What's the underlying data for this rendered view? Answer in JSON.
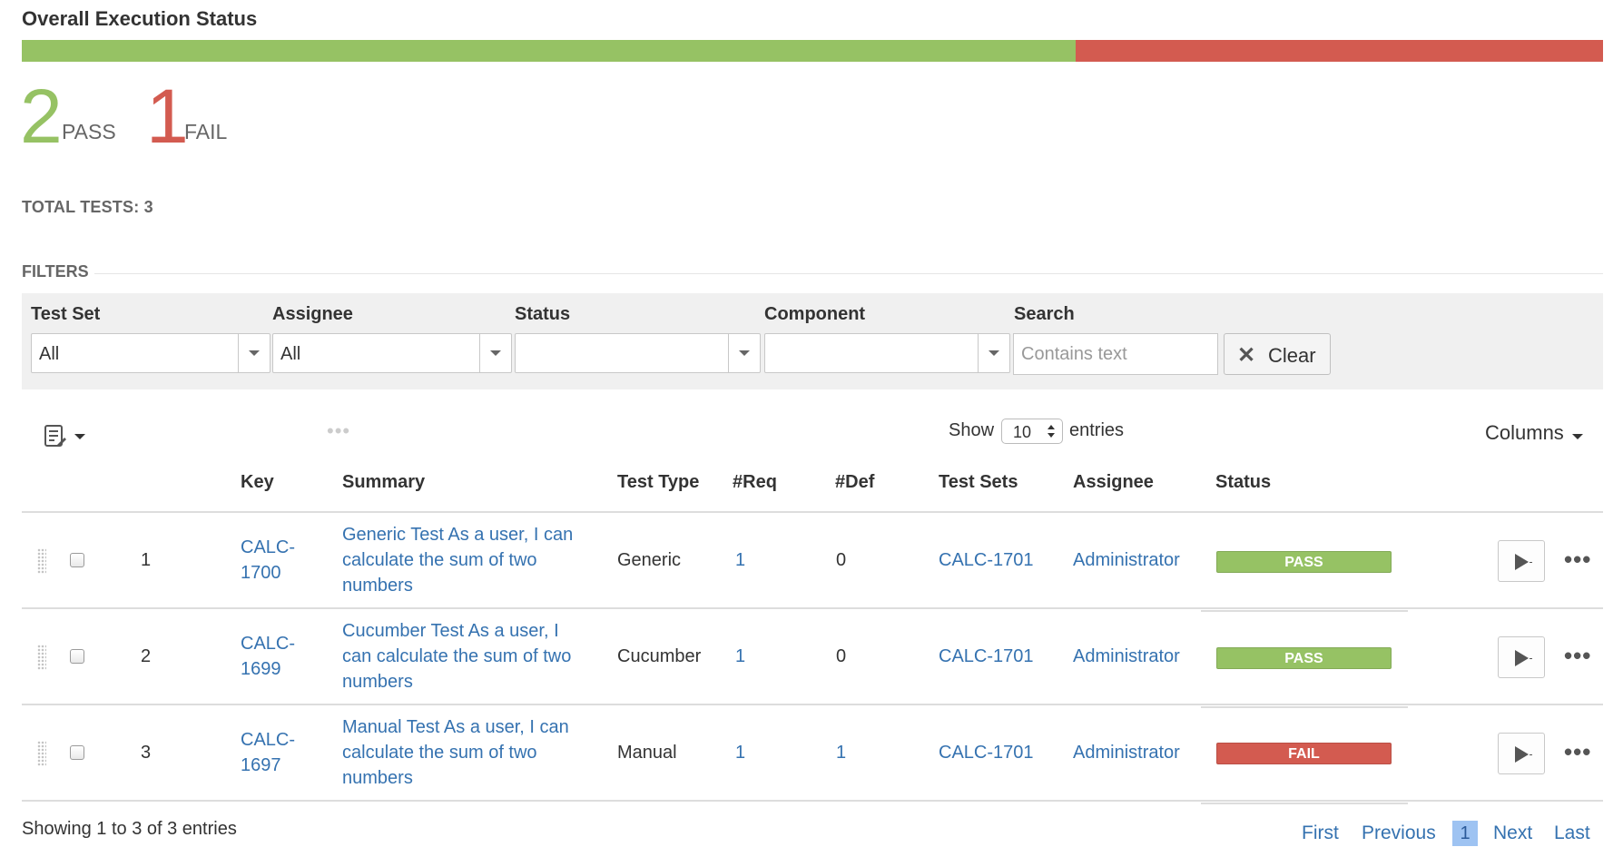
{
  "header": {
    "title": "Overall Execution Status"
  },
  "progress": {
    "pass_fraction": 0.6667,
    "fail_fraction": 0.3333,
    "pass_color": "#96c264",
    "fail_color": "#d35b50"
  },
  "counts": {
    "pass_number": "2",
    "pass_label": "PASS",
    "fail_number": "1",
    "fail_label": "FAIL"
  },
  "summary": {
    "total_tests": "TOTAL TESTS: 3"
  },
  "filters": {
    "title": "FILTERS",
    "test_set_label": "Test Set",
    "test_set_value": "All",
    "assignee_label": "Assignee",
    "assignee_value": "All",
    "status_label": "Status",
    "status_value": "",
    "component_label": "Component",
    "component_value": "",
    "search_label": "Search",
    "search_placeholder": "Contains text",
    "clear_label": "Clear",
    "clear_icon": "✕"
  },
  "toolbar": {
    "list_icon": "list-edit-icon",
    "drag_dots": "•••",
    "show_label": "Show",
    "page_size": "10",
    "entries_label": "entries",
    "columns_label": "Columns"
  },
  "table": {
    "headers": {
      "key": "Key",
      "summary": "Summary",
      "test_type": "Test Type",
      "req": "#Req",
      "def": "#Def",
      "test_sets": "Test Sets",
      "assignee": "Assignee",
      "status": "Status"
    },
    "rows": [
      {
        "index": "1",
        "key_line1": "CALC-",
        "key_line2": "1700",
        "summary_line1": "Generic Test As a user, I can",
        "summary_line2": "calculate the sum of two",
        "summary_line3": "numbers",
        "test_type": "Generic",
        "req": "1",
        "def": "0",
        "test_sets": "CALC-1701",
        "assignee": "Administrator",
        "status": "PASS"
      },
      {
        "index": "2",
        "key_line1": "CALC-",
        "key_line2": "1699",
        "summary_line1": "Cucumber Test As a user, I",
        "summary_line2": "can calculate the sum of two",
        "summary_line3": "numbers",
        "test_type": "Cucumber",
        "req": "1",
        "def": "0",
        "test_sets": "CALC-1701",
        "assignee": "Administrator",
        "status": "PASS"
      },
      {
        "index": "3",
        "key_line1": "CALC-",
        "key_line2": "1697",
        "summary_line1": "Manual Test As a user, I can",
        "summary_line2": "calculate the sum of two",
        "summary_line3": "numbers",
        "test_type": "Manual",
        "req": "1",
        "def": "1",
        "test_sets": "CALC-1701",
        "assignee": "Administrator",
        "status": "FAIL"
      }
    ],
    "row_actions": {
      "play_icon": "play-icon",
      "more": "•••"
    }
  },
  "footer": {
    "showing": "Showing 1 to 3 of 3 entries",
    "first": "First",
    "previous": "Previous",
    "current_page": "1",
    "next": "Next",
    "last": "Last"
  },
  "colors": {
    "link": "#3572b0",
    "pass": "#96c264",
    "fail": "#d35b50",
    "current_page_bg": "#9ec3f2"
  }
}
